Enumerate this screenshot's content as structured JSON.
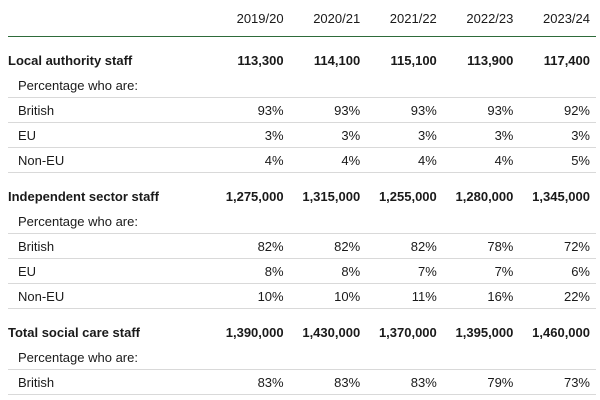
{
  "years": [
    "2019/20",
    "2020/21",
    "2021/22",
    "2022/23",
    "2023/24"
  ],
  "caption": "Percentage who are:",
  "sections": [
    {
      "title": "Local authority staff",
      "totals": [
        "113,300",
        "114,100",
        "115,100",
        "113,900",
        "117,400"
      ],
      "rows": [
        {
          "label": "British",
          "values": [
            "93%",
            "93%",
            "93%",
            "93%",
            "92%"
          ]
        },
        {
          "label": "EU",
          "values": [
            "3%",
            "3%",
            "3%",
            "3%",
            "3%"
          ]
        },
        {
          "label": "Non-EU",
          "values": [
            "4%",
            "4%",
            "4%",
            "4%",
            "5%"
          ]
        }
      ]
    },
    {
      "title": "Independent sector staff",
      "totals": [
        "1,275,000",
        "1,315,000",
        "1,255,000",
        "1,280,000",
        "1,345,000"
      ],
      "rows": [
        {
          "label": "British",
          "values": [
            "82%",
            "82%",
            "82%",
            "78%",
            "72%"
          ]
        },
        {
          "label": "EU",
          "values": [
            "8%",
            "8%",
            "7%",
            "7%",
            "6%"
          ]
        },
        {
          "label": "Non-EU",
          "values": [
            "10%",
            "10%",
            "11%",
            "16%",
            "22%"
          ]
        }
      ]
    },
    {
      "title": "Total social care staff",
      "totals": [
        "1,390,000",
        "1,430,000",
        "1,370,000",
        "1,395,000",
        "1,460,000"
      ],
      "rows": [
        {
          "label": "British",
          "values": [
            "83%",
            "83%",
            "83%",
            "79%",
            "73%"
          ]
        }
      ]
    }
  ]
}
